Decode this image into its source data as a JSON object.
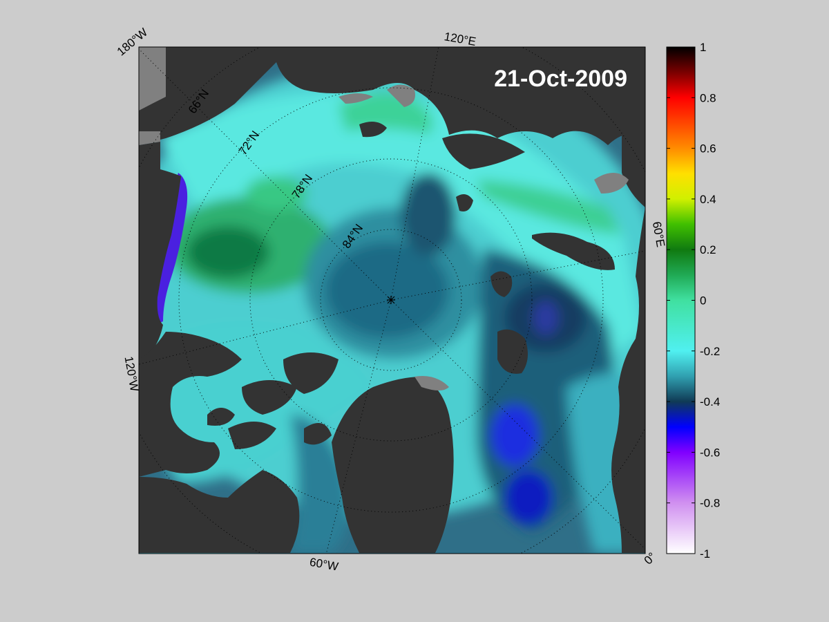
{
  "map": {
    "date": "21-Oct-2009",
    "projection": "north-polar-stereographic",
    "colors": {
      "background": "#cccccc",
      "land": "#333333",
      "land_masked": "#808080",
      "graticule": "#000000"
    },
    "longitude_labels": {
      "lon_180w": "180°W",
      "lon_120e": "120°E",
      "lon_60e": "60°E",
      "lon_0": "0°",
      "lon_60w": "60°W",
      "lon_120w": "120°W"
    },
    "latitude_labels": {
      "lat_66n": "66°N",
      "lat_72n": "72°N",
      "lat_78n": "78°N",
      "lat_84n": "84°N"
    },
    "pole_marker": "*"
  },
  "colorbar": {
    "range": [
      -1,
      1
    ],
    "ticks": [
      {
        "value": 1,
        "label": "1"
      },
      {
        "value": 0.8,
        "label": "0.8"
      },
      {
        "value": 0.6,
        "label": "0.6"
      },
      {
        "value": 0.4,
        "label": "0.4"
      },
      {
        "value": 0.2,
        "label": "0.2"
      },
      {
        "value": 0,
        "label": "0"
      },
      {
        "value": -0.2,
        "label": "-0.2"
      },
      {
        "value": -0.4,
        "label": "-0.4"
      },
      {
        "value": -0.6,
        "label": "-0.6"
      },
      {
        "value": -0.8,
        "label": "-0.8"
      },
      {
        "value": -1,
        "label": "-1"
      }
    ],
    "stops": [
      {
        "value": 1.0,
        "color": "#000000"
      },
      {
        "value": 0.9,
        "color": "#7a0000"
      },
      {
        "value": 0.8,
        "color": "#ff0000"
      },
      {
        "value": 0.6,
        "color": "#ff8c00"
      },
      {
        "value": 0.5,
        "color": "#ffe000"
      },
      {
        "value": 0.4,
        "color": "#d0f000"
      },
      {
        "value": 0.3,
        "color": "#40c000"
      },
      {
        "value": 0.2,
        "color": "#107a10"
      },
      {
        "value": 0.1,
        "color": "#20aa55"
      },
      {
        "value": 0.0,
        "color": "#40e0a0"
      },
      {
        "value": -0.2,
        "color": "#50f0f0"
      },
      {
        "value": -0.3,
        "color": "#30a0b0"
      },
      {
        "value": -0.4,
        "color": "#103a55"
      },
      {
        "value": -0.5,
        "color": "#0000ff"
      },
      {
        "value": -0.6,
        "color": "#8000ff"
      },
      {
        "value": -0.8,
        "color": "#d090f0"
      },
      {
        "value": -1.0,
        "color": "#ffffff"
      }
    ]
  }
}
